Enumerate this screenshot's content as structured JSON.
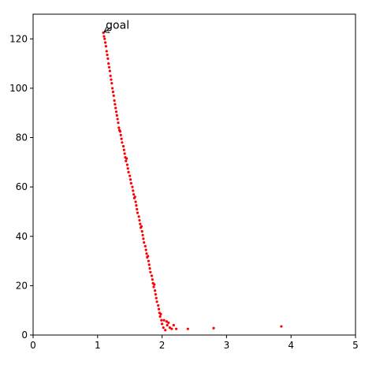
{
  "chart_data": {
    "type": "scatter",
    "title": "",
    "xlabel": "",
    "ylabel": "",
    "xlim": [
      0,
      5
    ],
    "ylim": [
      0,
      130
    ],
    "xticks": [
      0,
      1,
      2,
      3,
      4,
      5
    ],
    "yticks": [
      0,
      20,
      40,
      60,
      80,
      100,
      120
    ],
    "grid": false,
    "point_color": "#ff0000",
    "annotation": {
      "text": "goal",
      "target": [
        1.09,
        122.5
      ]
    },
    "series": [
      {
        "values": [
          [
            1.09,
            122.5
          ],
          [
            1.1,
            121.0
          ],
          [
            1.11,
            120.0
          ],
          [
            1.12,
            118.5
          ],
          [
            1.13,
            117.0
          ],
          [
            1.14,
            115.0
          ],
          [
            1.15,
            113.5
          ],
          [
            1.16,
            112.0
          ],
          [
            1.17,
            110.0
          ],
          [
            1.18,
            108.5
          ],
          [
            1.19,
            107.0
          ],
          [
            1.2,
            105.0
          ],
          [
            1.21,
            103.5
          ],
          [
            1.22,
            102.0
          ],
          [
            1.23,
            100.0
          ],
          [
            1.24,
            98.5
          ],
          [
            1.25,
            97.0
          ],
          [
            1.26,
            95.0
          ],
          [
            1.27,
            93.5
          ],
          [
            1.28,
            92.0
          ],
          [
            1.29,
            90.5
          ],
          [
            1.3,
            89.0
          ],
          [
            1.31,
            87.5
          ],
          [
            1.32,
            86.0
          ],
          [
            1.33,
            84.0
          ],
          [
            1.35,
            82.5
          ],
          [
            1.36,
            81.0
          ],
          [
            1.37,
            79.5
          ],
          [
            1.38,
            78.0
          ],
          [
            1.4,
            76.5
          ],
          [
            1.41,
            75.0
          ],
          [
            1.42,
            73.5
          ],
          [
            1.43,
            72.0
          ],
          [
            1.44,
            70.5
          ],
          [
            1.46,
            69.0
          ],
          [
            1.47,
            67.5
          ],
          [
            1.48,
            66.0
          ],
          [
            1.5,
            64.5
          ],
          [
            1.51,
            63.0
          ],
          [
            1.52,
            61.5
          ],
          [
            1.54,
            60.0
          ],
          [
            1.55,
            58.5
          ],
          [
            1.56,
            57.0
          ],
          [
            1.57,
            55.5
          ],
          [
            1.59,
            54.0
          ],
          [
            1.6,
            52.5
          ],
          [
            1.61,
            51.0
          ],
          [
            1.62,
            49.5
          ],
          [
            1.64,
            48.0
          ],
          [
            1.65,
            46.5
          ],
          [
            1.66,
            45.0
          ],
          [
            1.67,
            43.5
          ],
          [
            1.69,
            42.0
          ],
          [
            1.7,
            40.5
          ],
          [
            1.71,
            39.0
          ],
          [
            1.72,
            37.5
          ],
          [
            1.74,
            36.0
          ],
          [
            1.75,
            34.5
          ],
          [
            1.76,
            33.0
          ],
          [
            1.77,
            31.5
          ],
          [
            1.79,
            30.0
          ],
          [
            1.8,
            28.5
          ],
          [
            1.81,
            27.0
          ],
          [
            1.82,
            25.5
          ],
          [
            1.84,
            24.0
          ],
          [
            1.85,
            22.5
          ],
          [
            1.86,
            21.0
          ],
          [
            1.87,
            19.5
          ],
          [
            1.89,
            18.0
          ],
          [
            1.9,
            16.5
          ],
          [
            1.91,
            15.0
          ],
          [
            1.92,
            13.5
          ],
          [
            1.94,
            12.0
          ],
          [
            1.95,
            10.5
          ],
          [
            1.96,
            9.0
          ],
          [
            1.97,
            7.5
          ],
          [
            1.99,
            6.0
          ],
          [
            2.0,
            4.5
          ],
          [
            2.02,
            3.0
          ],
          [
            2.05,
            2.0
          ],
          [
            2.08,
            4.0
          ],
          [
            2.1,
            5.0
          ],
          [
            2.12,
            3.0
          ],
          [
            2.15,
            2.5
          ],
          [
            2.22,
            2.5
          ],
          [
            1.34,
            83.0
          ],
          [
            1.45,
            71.5
          ],
          [
            1.58,
            56.0
          ],
          [
            1.68,
            44.0
          ],
          [
            1.78,
            32.0
          ],
          [
            1.88,
            20.5
          ],
          [
            1.98,
            8.5
          ],
          [
            2.03,
            6.0
          ],
          [
            2.07,
            5.5
          ],
          [
            2.18,
            4.0
          ],
          [
            2.4,
            2.5
          ],
          [
            2.8,
            2.8
          ],
          [
            3.85,
            3.5
          ]
        ]
      }
    ]
  }
}
